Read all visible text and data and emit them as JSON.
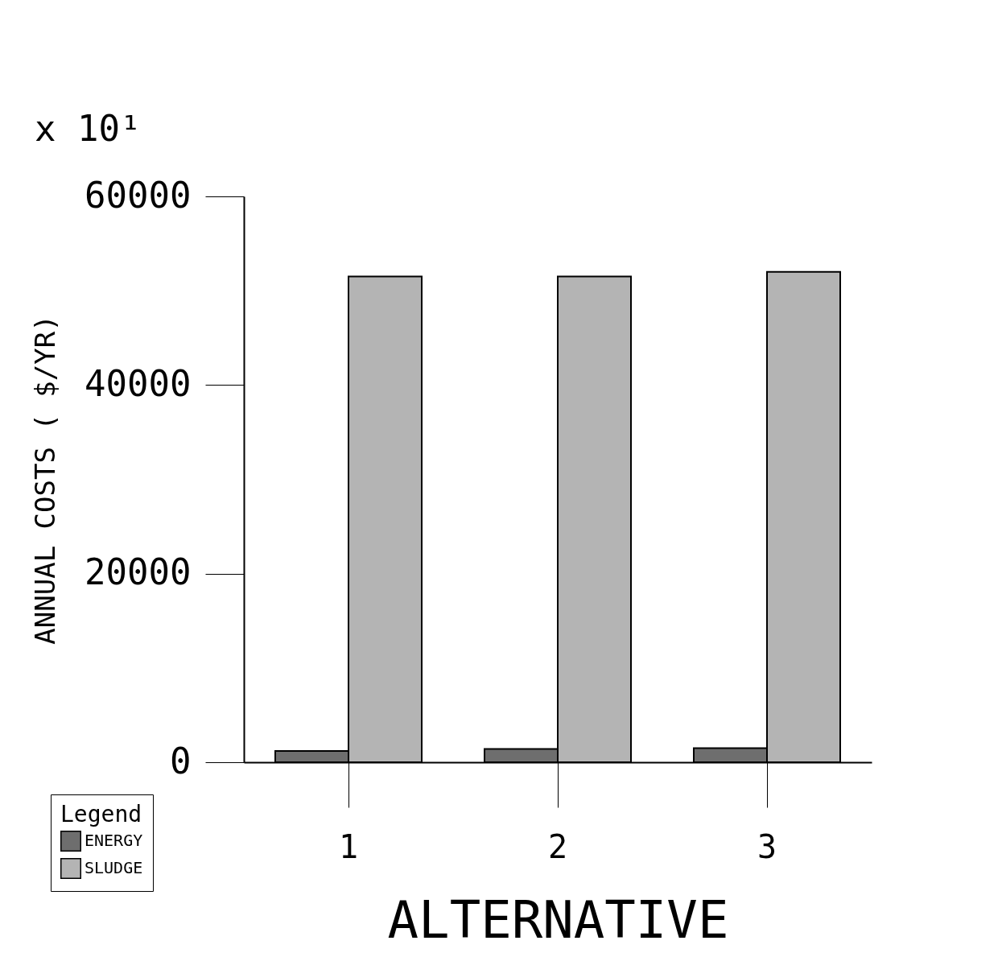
{
  "chart_data": {
    "type": "bar",
    "xlabel": "ALTERNATIVE",
    "ylabel": "ANNUAL COSTS   ( $/YR)",
    "legend_title": "Legend",
    "annotations": [
      "x 10¹"
    ],
    "categories": [
      "1",
      "2",
      "3"
    ],
    "series": [
      {
        "name": "ENERGY",
        "color": "#6e6e6e",
        "values": [
          1200,
          1400,
          1500
        ]
      },
      {
        "name": "SLUDGE",
        "color": "#b4b4b4",
        "values": [
          51500,
          51500,
          52000
        ]
      }
    ],
    "ylim": [
      0,
      60000
    ],
    "yticks": [
      0,
      20000,
      40000,
      60000
    ],
    "grid": false,
    "legend": "bottom left"
  }
}
